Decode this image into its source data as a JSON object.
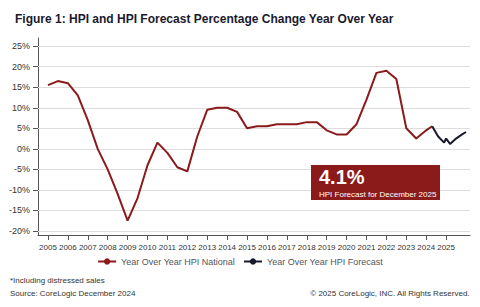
{
  "chart_data": {
    "type": "line",
    "title": "Figure 1: HPI and HPI Forecast Percentage Change Year Over Year",
    "series": [
      {
        "name": "Year Over Year HPI National",
        "color": "#8b1a1a",
        "x": [
          2005,
          2005.5,
          2006,
          2006.5,
          2007,
          2007.5,
          2008,
          2008.5,
          2009,
          2009.5,
          2010,
          2010.5,
          2011,
          2011.5,
          2012,
          2012.5,
          2013,
          2013.5,
          2014,
          2014.5,
          2015,
          2015.5,
          2016,
          2016.5,
          2017,
          2017.5,
          2018,
          2018.5,
          2019,
          2019.5,
          2020,
          2020.5,
          2021,
          2021.5,
          2022,
          2022.5,
          2023,
          2023.5,
          2024,
          2024.3
        ],
        "values": [
          15.5,
          16.5,
          16.0,
          13.0,
          7.0,
          0.0,
          -5.0,
          -11.0,
          -17.5,
          -12.0,
          -4.0,
          1.5,
          -1.0,
          -4.5,
          -5.5,
          3.0,
          9.5,
          10.0,
          10.0,
          9.0,
          5.0,
          5.5,
          5.5,
          6.0,
          6.0,
          6.0,
          6.5,
          6.5,
          4.5,
          3.5,
          3.5,
          6.0,
          12.0,
          18.5,
          19.0,
          17.0,
          5.0,
          2.5,
          4.5,
          5.5
        ]
      },
      {
        "name": "Year Over Year HPI Forecast",
        "color": "#1a1a2e",
        "x": [
          2024.3,
          2024.6,
          2024.9,
          2025,
          2025.2,
          2025.5,
          2025.8,
          2026.0
        ],
        "values": [
          5.5,
          3.0,
          1.5,
          2.5,
          1.2,
          2.5,
          3.5,
          4.1
        ]
      }
    ],
    "xlim": [
      2004.5,
      2026.2
    ],
    "xticks": [
      2005,
      2006,
      2007,
      2008,
      2009,
      2010,
      2011,
      2012,
      2013,
      2014,
      2015,
      2016,
      2017,
      2018,
      2019,
      2020,
      2021,
      2022,
      2023,
      2024,
      2025
    ],
    "ylim": [
      -21,
      27
    ],
    "yticks": [
      {
        "value": -20,
        "label": "-20%"
      },
      {
        "value": -15,
        "label": "-15%"
      },
      {
        "value": -10,
        "label": "-10%"
      },
      {
        "value": -5,
        "label": "-5%"
      },
      {
        "value": 0,
        "label": "0%"
      },
      {
        "value": 5,
        "label": "5%"
      },
      {
        "value": 10,
        "label": "10%"
      },
      {
        "value": 15,
        "label": "15%"
      },
      {
        "value": 20,
        "label": "20%"
      },
      {
        "value": 25,
        "label": "25%"
      }
    ],
    "grid": true,
    "legend": "bottom",
    "annotations": [
      {
        "text": "4.1%",
        "color": "#8b1a1a"
      },
      {
        "text": "HPI Forecast for December 2025",
        "color": "#8b1a1a"
      }
    ],
    "footnotes": [
      "*Including distressed sales",
      "Source: CoreLogic December 2024"
    ],
    "copyright": "© 2025 CoreLogic, INC. All Rights Reserved."
  }
}
